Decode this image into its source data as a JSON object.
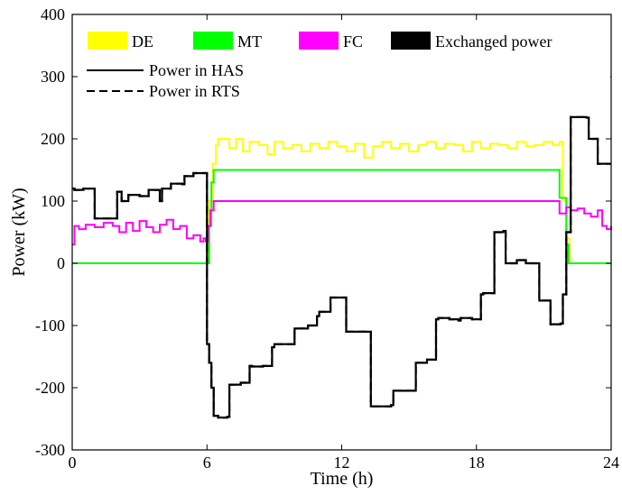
{
  "chart_data": {
    "type": "line",
    "xlabel": "Time (h)",
    "ylabel": "Power (kW)",
    "xlim": [
      0,
      24
    ],
    "ylim": [
      -300,
      400
    ],
    "xticks": [
      0,
      6,
      12,
      18,
      24
    ],
    "yticks": [
      -300,
      -200,
      -100,
      0,
      100,
      200,
      300,
      400
    ],
    "grid": false,
    "legend_position": "top",
    "legend_patches": [
      {
        "name": "DE",
        "color": "#ffff00"
      },
      {
        "name": "MT",
        "color": "#00ff00"
      },
      {
        "name": "FC",
        "color": "#ff00ff"
      },
      {
        "name": "Exchanged power",
        "color": "#000000"
      }
    ],
    "legend_lines": [
      {
        "name": "Power in HAS",
        "style": "solid"
      },
      {
        "name": "Power in RTS",
        "style": "dashed"
      }
    ],
    "series": [
      {
        "name": "DE",
        "color": "#ffff00",
        "step": true,
        "x": [
          0,
          6.0,
          6.1,
          6.25,
          6.4,
          6.5,
          7.0,
          7.3,
          7.6,
          7.9,
          8.3,
          8.7,
          9.0,
          9.4,
          9.8,
          10.2,
          10.6,
          11.0,
          11.4,
          11.8,
          12.2,
          12.6,
          13.0,
          13.4,
          13.8,
          14.2,
          14.6,
          15.0,
          15.4,
          15.8,
          16.2,
          16.6,
          17.0,
          17.4,
          17.8,
          18.2,
          18.6,
          19.0,
          19.4,
          19.8,
          20.2,
          20.6,
          21.0,
          21.4,
          21.7,
          21.85,
          22.0,
          22.15
        ],
        "y": [
          0,
          0,
          100,
          160,
          190,
          200,
          185,
          200,
          180,
          195,
          190,
          175,
          195,
          185,
          190,
          180,
          192,
          185,
          195,
          188,
          180,
          192,
          170,
          188,
          195,
          185,
          192,
          180,
          190,
          195,
          185,
          192,
          190,
          180,
          195,
          185,
          192,
          190,
          185,
          195,
          188,
          190,
          195,
          190,
          195,
          100,
          40,
          0
        ]
      },
      {
        "name": "MT",
        "color": "#00ff00",
        "step": true,
        "x": [
          0,
          6.0,
          6.1,
          6.2,
          6.3,
          21.6,
          21.7,
          21.85,
          22.0,
          22.1,
          24
        ],
        "y": [
          0,
          0,
          60,
          130,
          150,
          150,
          105,
          105,
          30,
          0,
          0
        ]
      },
      {
        "name": "FC",
        "color": "#ff00ff",
        "step": true,
        "x": [
          0,
          0.1,
          0.3,
          0.6,
          1.0,
          1.4,
          1.8,
          2.1,
          2.4,
          2.7,
          3.0,
          3.3,
          3.6,
          3.9,
          4.2,
          4.5,
          4.8,
          5.1,
          5.4,
          5.7,
          5.85,
          5.95,
          6.05,
          6.15,
          6.3,
          21.6,
          21.7,
          22.0,
          22.2,
          22.5,
          22.8,
          23.1,
          23.4,
          23.6,
          23.8,
          24
        ],
        "y": [
          30,
          60,
          55,
          62,
          58,
          65,
          60,
          50,
          65,
          52,
          68,
          58,
          50,
          62,
          70,
          55,
          60,
          40,
          45,
          35,
          40,
          35,
          60,
          85,
          100,
          100,
          80,
          90,
          85,
          88,
          80,
          75,
          85,
          60,
          55,
          60
        ]
      },
      {
        "name": "Power in RTS",
        "color": "#000000",
        "dash": "9,5",
        "step": true,
        "x": [
          0,
          0.1,
          0.5,
          1.0,
          1.9,
          2.0,
          2.2,
          2.5,
          3.0,
          3.4,
          3.9,
          4.0,
          4.4,
          4.9,
          5.0,
          5.4,
          5.9,
          6.0,
          6.1,
          6.2,
          6.3,
          6.5,
          6.9,
          7.0,
          7.5,
          7.9,
          8.0,
          8.5,
          8.9,
          9.0,
          9.5,
          9.9,
          10.0,
          10.5,
          10.9,
          11.0,
          11.5,
          12.1,
          12.2,
          12.6,
          13.2,
          13.3,
          13.8,
          14.2,
          14.3,
          14.8,
          15.2,
          15.3,
          15.8,
          16.2,
          16.3,
          16.8,
          17.2,
          17.3,
          17.8,
          18.2,
          18.3,
          18.8,
          19.2,
          19.3,
          19.8,
          20.2,
          20.3,
          20.8,
          21.2,
          21.3,
          21.6,
          21.75,
          21.85,
          22.0,
          22.2,
          22.5,
          22.9,
          23.0,
          23.4,
          23.6,
          24
        ],
        "y": [
          120,
          118,
          120,
          72,
          72,
          115,
          100,
          110,
          108,
          118,
          100,
          120,
          128,
          127,
          140,
          145,
          145,
          -130,
          -160,
          -200,
          -245,
          -248,
          -247,
          -195,
          -192,
          -165,
          -166,
          -165,
          -135,
          -130,
          -130,
          -105,
          -105,
          -100,
          -85,
          -78,
          -55,
          -55,
          -110,
          -110,
          -110,
          -230,
          -230,
          -228,
          -205,
          -205,
          -205,
          -160,
          -155,
          -90,
          -88,
          -90,
          -92,
          -88,
          -90,
          -50,
          -48,
          50,
          52,
          0,
          5,
          0,
          0,
          -60,
          -60,
          -98,
          -98,
          -97,
          -50,
          50,
          235,
          235,
          234,
          200,
          160,
          160,
          160
        ]
      },
      {
        "name": "Power in HAS",
        "color": "#000000",
        "dash": "",
        "step": true,
        "x": [
          0,
          0.1,
          0.5,
          1.0,
          1.9,
          2.0,
          2.2,
          2.5,
          3.0,
          3.4,
          3.9,
          4.0,
          4.4,
          4.9,
          5.0,
          5.4,
          5.9,
          6.0,
          6.1,
          6.2,
          6.3,
          6.5,
          6.9,
          7.0,
          7.5,
          7.9,
          8.0,
          8.5,
          8.9,
          9.0,
          9.5,
          9.9,
          10.0,
          10.5,
          10.9,
          11.0,
          11.5,
          12.1,
          12.2,
          12.6,
          13.2,
          13.3,
          13.8,
          14.2,
          14.3,
          14.8,
          15.2,
          15.3,
          15.8,
          16.2,
          16.3,
          16.8,
          17.2,
          17.3,
          17.8,
          18.2,
          18.3,
          18.8,
          19.2,
          19.3,
          19.8,
          20.2,
          20.3,
          20.8,
          21.2,
          21.3,
          21.6,
          21.75,
          21.85,
          22.0,
          22.2,
          22.5,
          22.9,
          23.0,
          23.4,
          23.6,
          24
        ],
        "y": [
          120,
          118,
          120,
          72,
          72,
          115,
          100,
          110,
          108,
          118,
          100,
          120,
          128,
          127,
          140,
          145,
          145,
          -130,
          -160,
          -200,
          -245,
          -248,
          -247,
          -195,
          -192,
          -165,
          -166,
          -165,
          -135,
          -130,
          -130,
          -105,
          -105,
          -100,
          -85,
          -78,
          -55,
          -55,
          -110,
          -110,
          -110,
          -230,
          -230,
          -228,
          -205,
          -205,
          -205,
          -160,
          -155,
          -90,
          -88,
          -90,
          -92,
          -88,
          -90,
          -50,
          -48,
          50,
          52,
          0,
          5,
          0,
          0,
          -60,
          -60,
          -98,
          -98,
          -97,
          -50,
          50,
          235,
          235,
          234,
          200,
          160,
          160,
          160
        ]
      }
    ]
  }
}
